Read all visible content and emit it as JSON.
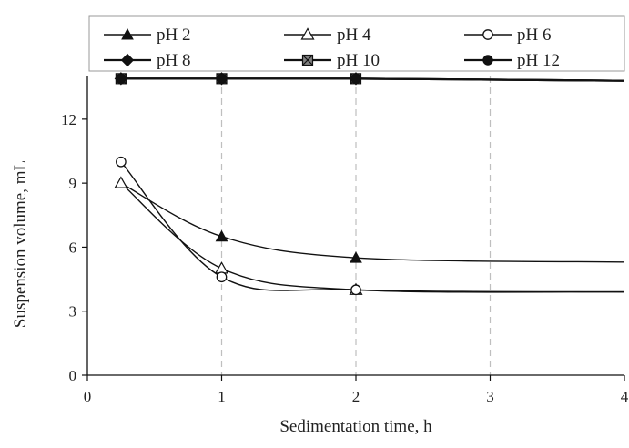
{
  "chart_data": {
    "type": "line",
    "title": "",
    "xlabel": "Sedimentation time, h",
    "ylabel": "Suspension volume, mL",
    "xlim": [
      0,
      4
    ],
    "ylim": [
      0,
      14
    ],
    "xticks": [
      0,
      1,
      2,
      3,
      4
    ],
    "yticks": [
      0,
      3,
      6,
      9,
      12
    ],
    "grid": "vertical-dashed",
    "legend_position": "top",
    "series": [
      {
        "name": "pH 2",
        "marker": "triangle-filled",
        "x": [
          0.25,
          1,
          2,
          4
        ],
        "y": [
          9.0,
          6.5,
          5.5,
          5.3
        ]
      },
      {
        "name": "pH 4",
        "marker": "triangle-open",
        "x": [
          0.25,
          1,
          2,
          4
        ],
        "y": [
          9.0,
          5.0,
          4.0,
          3.9
        ]
      },
      {
        "name": "pH 6",
        "marker": "circle-open",
        "x": [
          0.25,
          1,
          2,
          4
        ],
        "y": [
          10.0,
          4.6,
          4.0,
          3.9
        ]
      },
      {
        "name": "pH 8",
        "marker": "diamond-filled",
        "x": [
          0.25,
          1,
          2,
          4
        ],
        "y": [
          13.9,
          13.9,
          13.9,
          13.8
        ]
      },
      {
        "name": "pH 10",
        "marker": "square-x",
        "x": [
          0.25,
          1,
          2,
          4
        ],
        "y": [
          13.9,
          13.9,
          13.9,
          13.8
        ]
      },
      {
        "name": "pH 12",
        "marker": "circle-filled",
        "x": [
          0.25,
          1,
          2,
          4
        ],
        "y": [
          13.9,
          13.9,
          13.9,
          13.8
        ]
      }
    ],
    "colors": {
      "line": "#111111",
      "grid": "#bfbfbf",
      "square_fill": "#808080"
    }
  }
}
